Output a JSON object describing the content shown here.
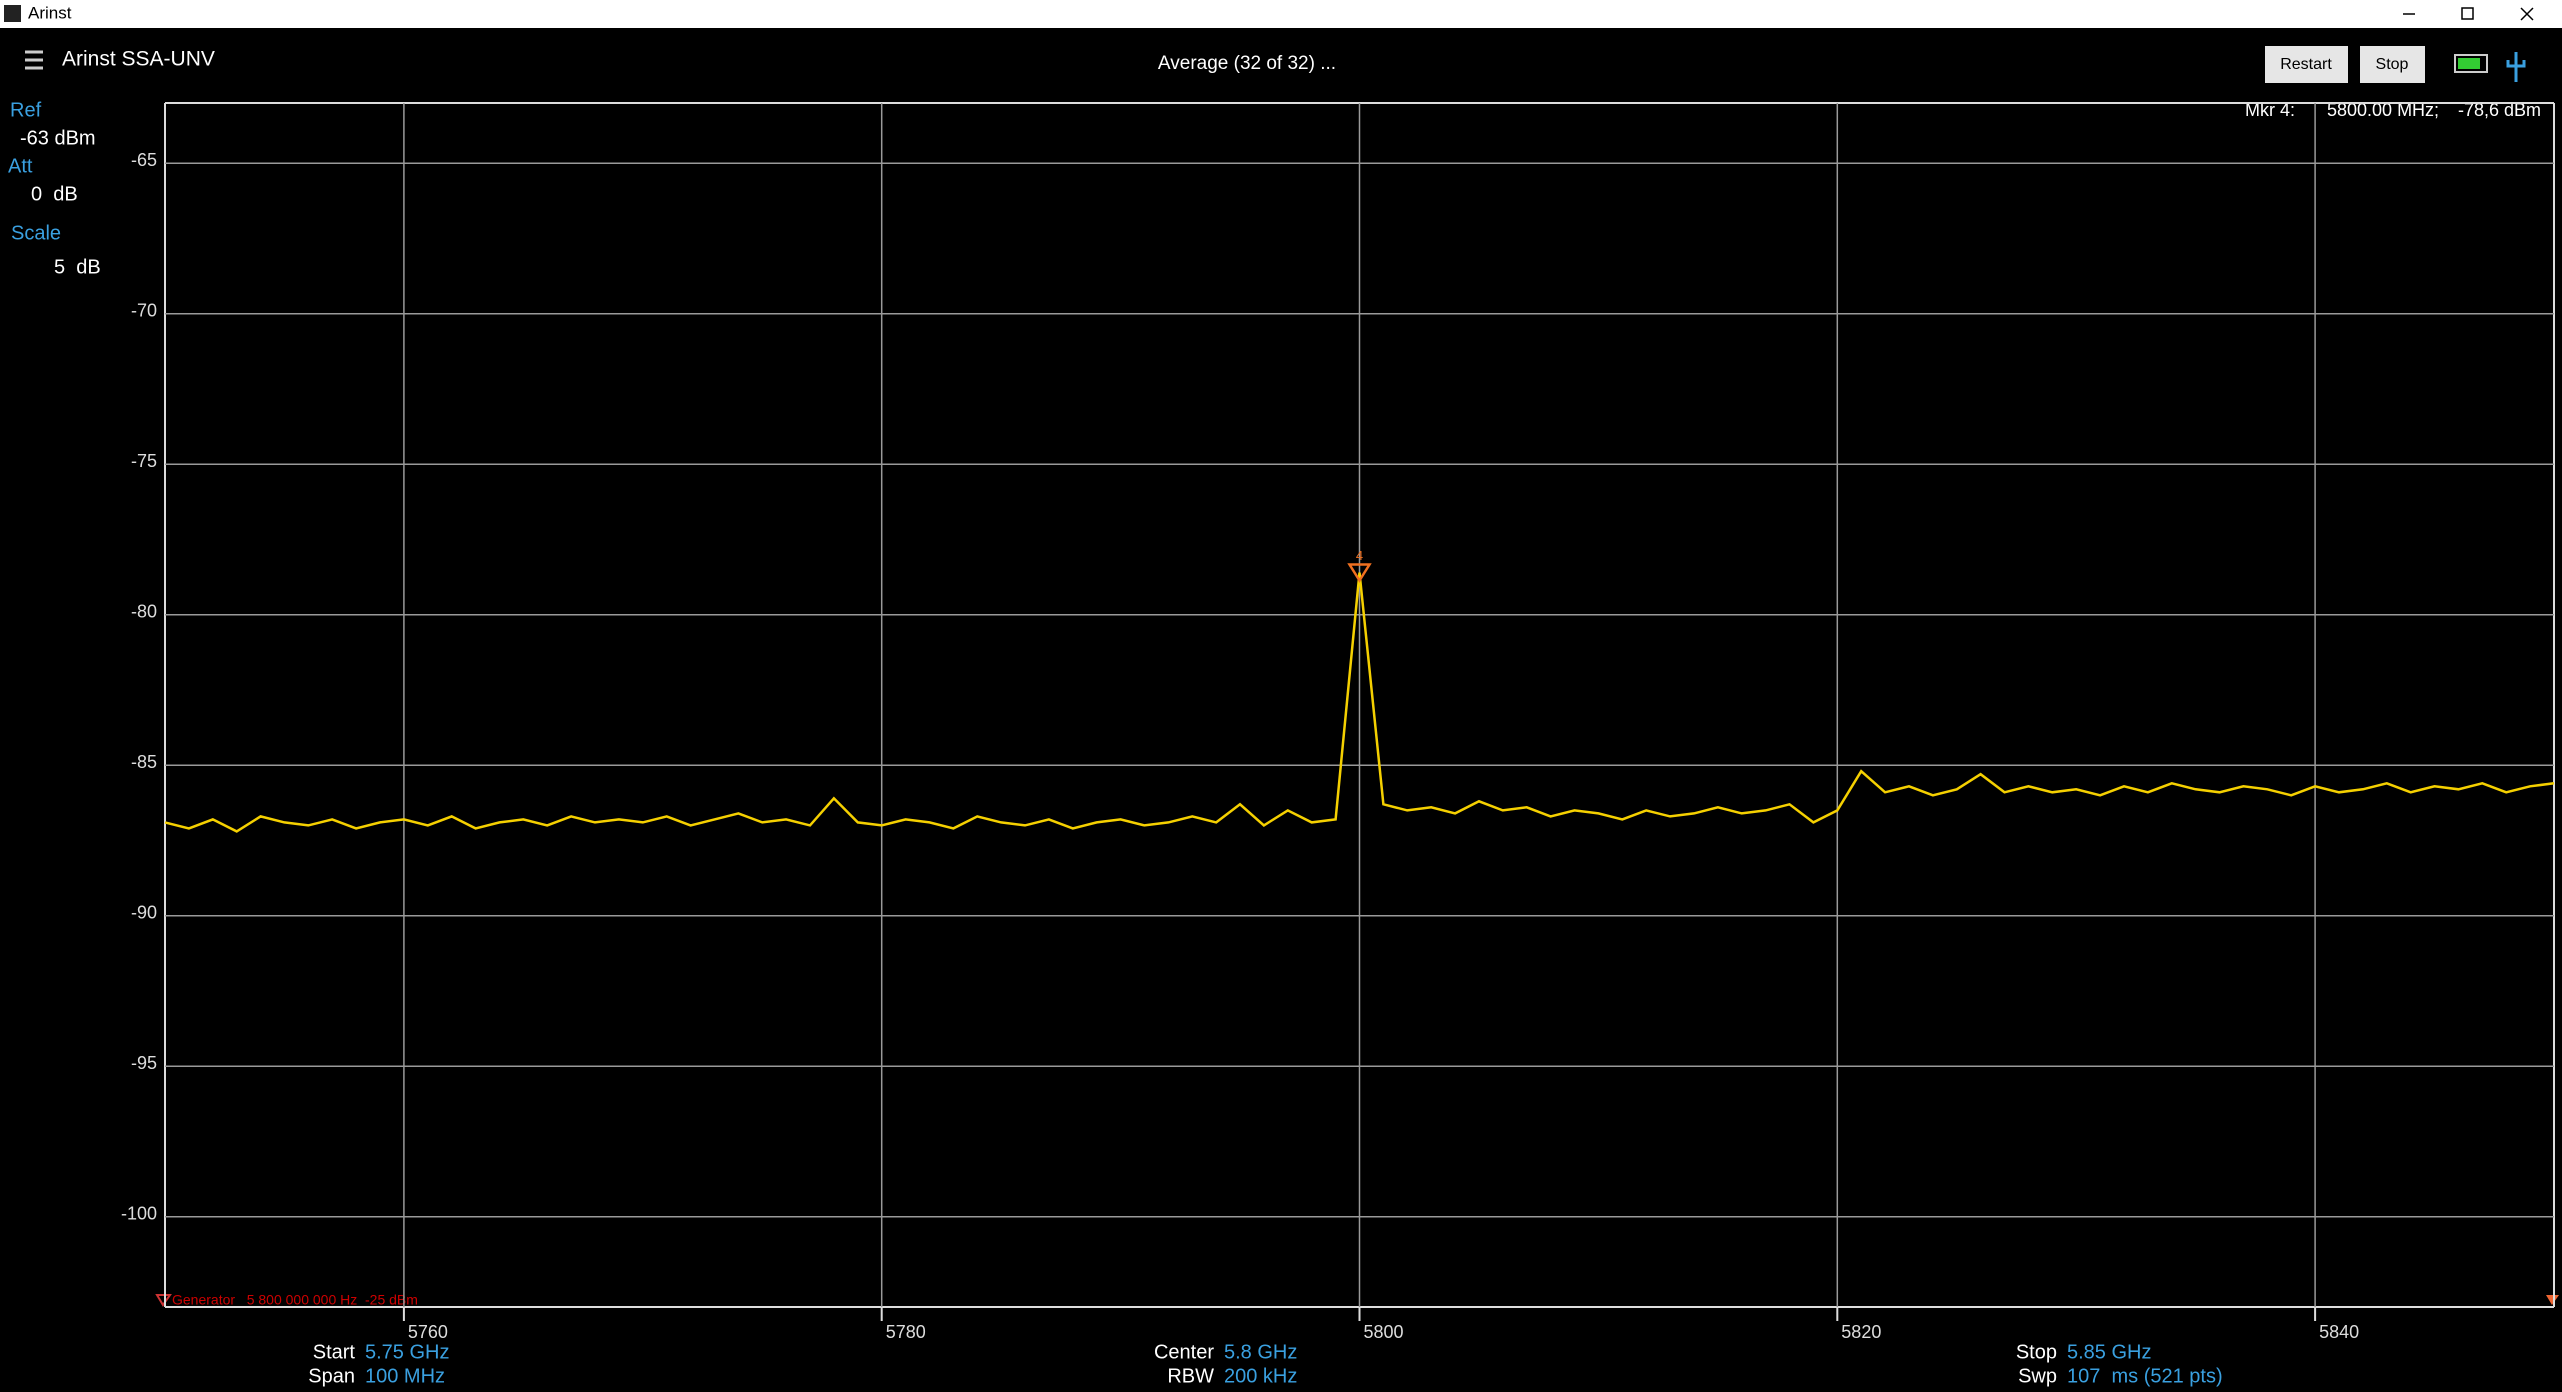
{
  "window": {
    "title": "Arinst"
  },
  "header": {
    "app_name": "Arinst SSA-UNV",
    "status": "Average (32 of 32) ...",
    "buttons": [
      "Restart",
      "Stop"
    ]
  },
  "left_panel": {
    "ref_label": "Ref",
    "ref_value": "-63 dBm",
    "att_label": "Att",
    "att_value": "0  dB",
    "scale_label": "Scale",
    "scale_value": "5  dB"
  },
  "marker_readout": {
    "name": "Mkr 4:",
    "frequency": "5800.00 MHz;",
    "level": "-78,6 dBm"
  },
  "generator": "Generator   5 800 000 000 Hz  -25 dBm",
  "footer": [
    {
      "label": "Start",
      "value": "5.75 GHz"
    },
    {
      "label": "Span",
      "value": "100 MHz"
    },
    {
      "label": "Center",
      "value": "5.8 GHz"
    },
    {
      "label": "RBW",
      "value": "200 kHz"
    },
    {
      "label": "Stop",
      "value": "5.85 GHz"
    },
    {
      "label": "Swp",
      "value": "107  ms (521 pts)"
    }
  ],
  "chart_data": {
    "type": "line",
    "grid": true,
    "xlim": [
      5750,
      5850
    ],
    "xticks": [
      5760,
      5780,
      5800,
      5820,
      5840
    ],
    "ylim": [
      -103,
      -63
    ],
    "yticks": [
      -65,
      -70,
      -75,
      -80,
      -85,
      -90,
      -95,
      -100
    ],
    "marker": {
      "label": "4",
      "x": 5800,
      "y": -78.6
    },
    "x": [
      5750,
      5751,
      5752,
      5753,
      5754,
      5755,
      5756,
      5757,
      5758,
      5759,
      5760,
      5761,
      5762,
      5763,
      5764,
      5765,
      5766,
      5767,
      5768,
      5769,
      5770,
      5771,
      5772,
      5773,
      5774,
      5775,
      5776,
      5777,
      5778,
      5779,
      5780,
      5781,
      5782,
      5783,
      5784,
      5785,
      5786,
      5787,
      5788,
      5789,
      5790,
      5791,
      5792,
      5793,
      5794,
      5795,
      5796,
      5797,
      5798,
      5799,
      5800,
      5801,
      5802,
      5803,
      5804,
      5805,
      5806,
      5807,
      5808,
      5809,
      5810,
      5811,
      5812,
      5813,
      5814,
      5815,
      5816,
      5817,
      5818,
      5819,
      5820,
      5821,
      5822,
      5823,
      5824,
      5825,
      5826,
      5827,
      5828,
      5829,
      5830,
      5831,
      5832,
      5833,
      5834,
      5835,
      5836,
      5837,
      5838,
      5839,
      5840,
      5841,
      5842,
      5843,
      5844,
      5845,
      5846,
      5847,
      5848,
      5849,
      5850
    ],
    "series": [
      {
        "color": "#f5d000",
        "values": [
          -86.9,
          -87.1,
          -86.8,
          -87.2,
          -86.7,
          -86.9,
          -87.0,
          -86.8,
          -87.1,
          -86.9,
          -86.8,
          -87.0,
          -86.7,
          -87.1,
          -86.9,
          -86.8,
          -87.0,
          -86.7,
          -86.9,
          -86.8,
          -86.9,
          -86.7,
          -87.0,
          -86.8,
          -86.6,
          -86.9,
          -86.8,
          -87.0,
          -86.1,
          -86.9,
          -87.0,
          -86.8,
          -86.9,
          -87.1,
          -86.7,
          -86.9,
          -87.0,
          -86.8,
          -87.1,
          -86.9,
          -86.8,
          -87.0,
          -86.9,
          -86.7,
          -86.9,
          -86.3,
          -87.0,
          -86.5,
          -86.9,
          -86.8,
          -78.6,
          -86.3,
          -86.5,
          -86.4,
          -86.6,
          -86.2,
          -86.5,
          -86.4,
          -86.7,
          -86.5,
          -86.6,
          -86.8,
          -86.5,
          -86.7,
          -86.6,
          -86.4,
          -86.6,
          -86.5,
          -86.3,
          -86.9,
          -86.5,
          -85.2,
          -85.9,
          -85.7,
          -86.0,
          -85.8,
          -85.3,
          -85.9,
          -85.7,
          -85.9,
          -85.8,
          -86.0,
          -85.7,
          -85.9,
          -85.6,
          -85.8,
          -85.9,
          -85.7,
          -85.8,
          -86.0,
          -85.7,
          -85.9,
          -85.8,
          -85.6,
          -85.9,
          -85.7,
          -85.8,
          -85.6,
          -85.9,
          -85.7,
          -85.6
        ]
      }
    ]
  }
}
